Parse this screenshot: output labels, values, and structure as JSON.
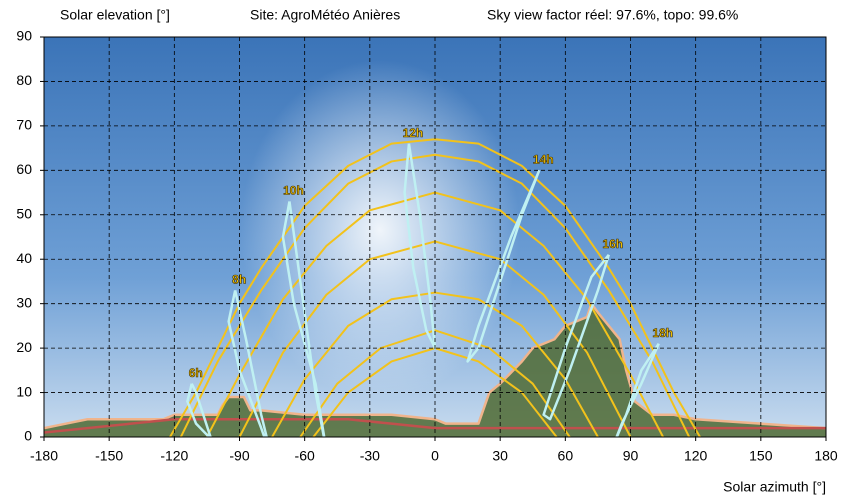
{
  "chart_data": {
    "type": "line",
    "title": "Solar elevation [°]",
    "subtitle": "Site: AgroMétéo Anières",
    "annotation": "Sky view factor réel: 97.6%, topo: 99.6%",
    "x_label": "Solar azimuth [°]",
    "xlim": [
      -180,
      180
    ],
    "ylim": [
      0,
      90
    ],
    "xticks": [
      -180,
      -150,
      -120,
      -90,
      -60,
      -30,
      0,
      30,
      60,
      90,
      120,
      150,
      180
    ],
    "yticks": [
      0,
      10,
      20,
      30,
      40,
      50,
      60,
      70,
      80,
      90
    ],
    "grid": true,
    "sun_paths": [
      {
        "color": "#f2c21b",
        "x": [
          -122,
          -110,
          -100,
          -90,
          -80,
          -60,
          -40,
          -20,
          0,
          20,
          40,
          60,
          80,
          90,
          100,
          110,
          122
        ],
        "values": [
          0,
          10,
          20,
          30,
          38,
          52,
          61,
          66,
          67,
          66,
          61,
          52,
          38,
          30,
          20,
          10,
          0
        ]
      },
      {
        "color": "#f2c21b",
        "x": [
          -117,
          -100,
          -80,
          -60,
          -40,
          -20,
          0,
          20,
          40,
          60,
          80,
          100,
          117
        ],
        "values": [
          0,
          17,
          33,
          47,
          57,
          62,
          63.5,
          62,
          57,
          47,
          33,
          17,
          0
        ]
      },
      {
        "color": "#f2c21b",
        "x": [
          -105,
          -90,
          -70,
          -50,
          -30,
          0,
          30,
          50,
          70,
          90,
          105
        ],
        "values": [
          0,
          14,
          31,
          43,
          51,
          55,
          51,
          43,
          31,
          14,
          0
        ]
      },
      {
        "color": "#f2c21b",
        "x": [
          -90,
          -70,
          -50,
          -30,
          0,
          30,
          50,
          70,
          90
        ],
        "values": [
          0,
          19,
          32,
          40,
          44,
          40,
          32,
          19,
          0
        ]
      },
      {
        "color": "#f2c21b",
        "x": [
          -75,
          -60,
          -40,
          -20,
          0,
          20,
          40,
          60,
          75
        ],
        "values": [
          0,
          13,
          25,
          31,
          32.5,
          31,
          25,
          13,
          0
        ]
      },
      {
        "color": "#f2c21b",
        "x": [
          -62,
          -45,
          -25,
          0,
          25,
          45,
          62
        ],
        "values": [
          0,
          12,
          20,
          24,
          20,
          12,
          0
        ]
      },
      {
        "color": "#f2c21b",
        "x": [
          -56,
          -40,
          -20,
          0,
          20,
          40,
          56
        ],
        "values": [
          0,
          10,
          17,
          20,
          17,
          10,
          0
        ]
      }
    ],
    "analemmas": [
      {
        "name": "6h",
        "color": "#bff0f2",
        "x": [
          -112,
          -114,
          -110,
          -104,
          -100,
          -106,
          -110,
          -112
        ],
        "values": [
          12,
          8,
          3,
          0,
          -5,
          4,
          10,
          12
        ]
      },
      {
        "name": "8h",
        "color": "#bff0f2",
        "x": [
          -92,
          -95,
          -90,
          -80,
          -75,
          -80,
          -87,
          -92
        ],
        "values": [
          33,
          26,
          15,
          2,
          -5,
          5,
          22,
          33
        ]
      },
      {
        "name": "10h",
        "color": "#bff0f2",
        "x": [
          -67,
          -70,
          -65,
          -55,
          -50,
          -55,
          -62,
          -67
        ],
        "values": [
          53,
          45,
          30,
          12,
          -3,
          10,
          35,
          53
        ]
      },
      {
        "name": "12h",
        "color": "#bff0f2",
        "x": [
          -12,
          -14,
          -10,
          -4,
          0,
          -2,
          -7,
          -12
        ],
        "values": [
          66,
          55,
          38,
          24,
          20,
          30,
          50,
          66
        ]
      },
      {
        "name": "14h",
        "color": "#bff0f2",
        "x": [
          48,
          40,
          30,
          20,
          15,
          20,
          35,
          48
        ],
        "values": [
          60,
          50,
          35,
          20,
          17,
          25,
          45,
          60
        ]
      },
      {
        "name": "16h",
        "color": "#bff0f2",
        "x": [
          80,
          72,
          60,
          50,
          53,
          62,
          75,
          80
        ],
        "values": [
          41,
          36,
          20,
          5,
          4,
          15,
          33,
          41
        ]
      },
      {
        "name": "18h",
        "color": "#bff0f2",
        "x": [
          103,
          95,
          88,
          82,
          86,
          95,
          103
        ],
        "values": [
          21,
          15,
          5,
          -2,
          3,
          12,
          21
        ]
      }
    ],
    "horizons": [
      {
        "color": "#f0b48c",
        "x": [
          -180,
          -170,
          -160,
          -140,
          -125,
          -120,
          -100,
          -98,
          -95,
          -88,
          -85,
          -80,
          -60,
          -40,
          -20,
          0,
          5,
          20,
          25,
          30,
          40,
          45,
          55,
          60,
          70,
          72,
          75,
          80,
          85,
          88,
          92,
          100,
          110,
          120,
          150,
          180
        ],
        "values": [
          2,
          3,
          4,
          4,
          4,
          5,
          5,
          7,
          9,
          9,
          6,
          6,
          5,
          5,
          5,
          4,
          3,
          3,
          10,
          12,
          17,
          20,
          22,
          25,
          27,
          30,
          28,
          25,
          22,
          15,
          8,
          5,
          5,
          4,
          3,
          2
        ]
      },
      {
        "color": "#c0504d",
        "x": [
          -180,
          -160,
          -140,
          -120,
          -100,
          -80,
          -60,
          -40,
          -20,
          0,
          20,
          40,
          60,
          80,
          100,
          120,
          140,
          160,
          180
        ],
        "values": [
          1,
          2,
          3,
          4,
          4,
          4,
          4,
          4,
          3,
          2,
          2,
          2,
          2,
          2,
          2,
          2,
          2,
          2,
          2
        ]
      }
    ]
  }
}
